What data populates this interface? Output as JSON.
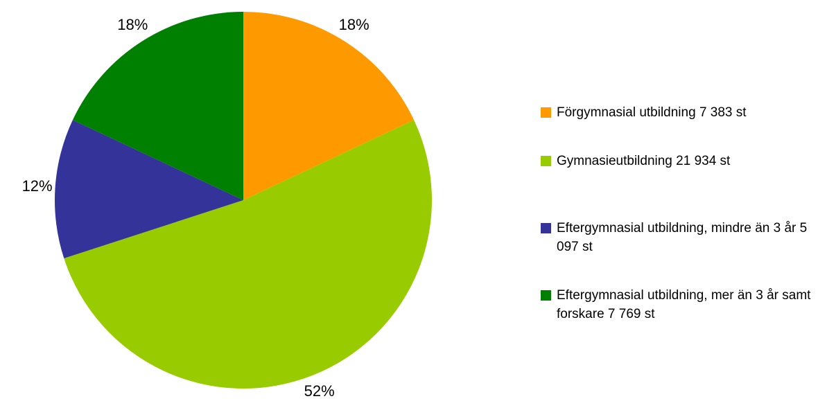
{
  "chart_data": {
    "type": "pie",
    "categories": [
      "Förgymnasial utbildning 7 383 st",
      "Gymnasieutbildning 21 934 st",
      "Eftergymnasial utbildning, mindre än 3 år 5 097 st",
      "Eftergymnasial utbildning, mer än 3 år samt forskare 7 769 st"
    ],
    "values": [
      18,
      52,
      12,
      18
    ],
    "value_labels": [
      "18%",
      "52%",
      "12%",
      "18%"
    ],
    "colors": [
      "#ff9900",
      "#99cc00",
      "#333399",
      "#008000"
    ],
    "legend": "right"
  }
}
